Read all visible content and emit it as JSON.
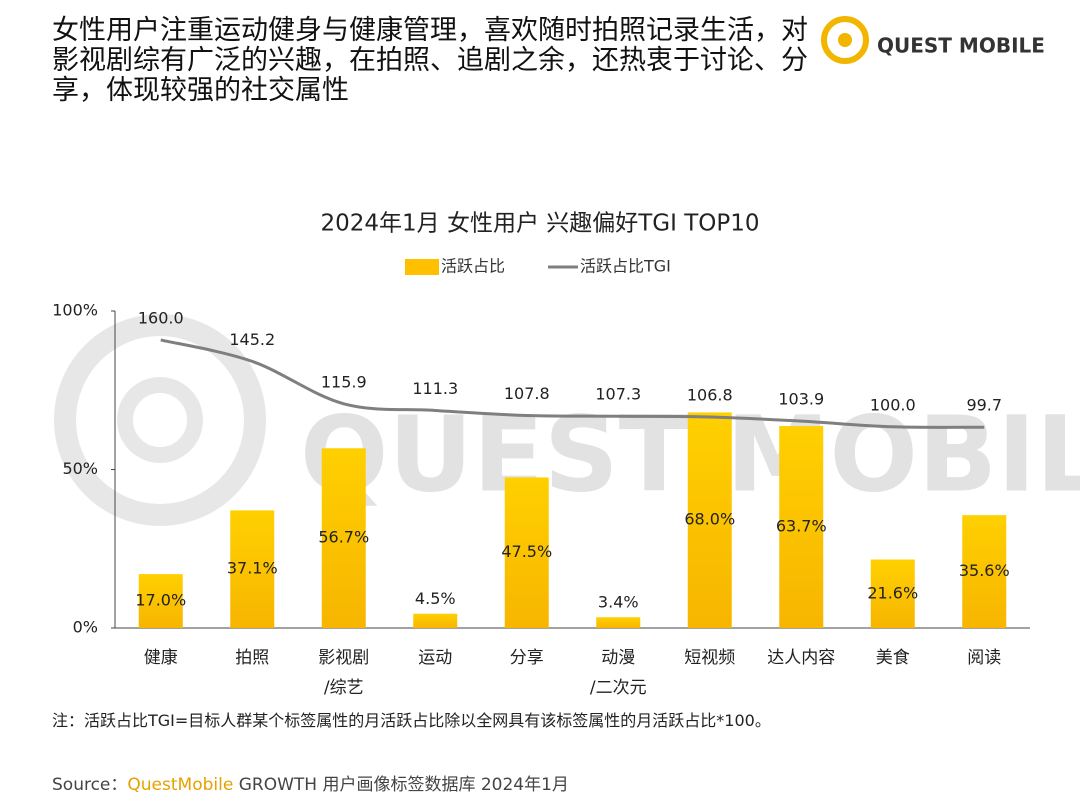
{
  "header": {
    "title": "女性用户注重运动健身与健康管理，喜欢随时拍照记录生活，对影视剧综有广泛的兴趣，在拍照、追剧之余，还热衷于讨论、分享，体现较强的社交属性",
    "logo": "QUEST MOBILE"
  },
  "watermark": "QUEST MOBILE",
  "chart_data": {
    "type": "bar",
    "title": "2024年1月 女性用户 兴趣偏好TGI TOP10",
    "categories": [
      "健康",
      "拍照",
      "影视剧\n/综艺",
      "运动",
      "分享",
      "动漫\n/二次元",
      "短视频",
      "达人内容",
      "美食",
      "阅读"
    ],
    "series": [
      {
        "name": "活跃占比",
        "color": "#FFC000",
        "values": [
          17.0,
          37.1,
          56.7,
          4.5,
          47.5,
          3.4,
          68.0,
          63.7,
          21.6,
          35.6
        ],
        "value_labels": [
          "17.0%",
          "37.1%",
          "56.7%",
          "4.5%",
          "47.5%",
          "3.4%",
          "68.0%",
          "63.7%",
          "21.6%",
          "35.6%"
        ]
      },
      {
        "name": "活跃占比TGI",
        "type": "line",
        "axis": "y2",
        "color": "#7F7F7F",
        "values": [
          160.0,
          145.2,
          115.9,
          111.3,
          107.8,
          107.3,
          106.8,
          103.9,
          100.0,
          99.7
        ],
        "value_labels": [
          "160.0",
          "145.2",
          "115.9",
          "111.3",
          "107.8",
          "107.3",
          "106.8",
          "103.9",
          "100.0",
          "99.7"
        ]
      }
    ],
    "ylim": [
      0,
      100
    ],
    "yticks": [
      {
        "value": 0,
        "label": "0%"
      },
      {
        "value": 50,
        "label": "50%"
      },
      {
        "value": 100,
        "label": "100%"
      }
    ],
    "y2lim": [
      -39,
      180
    ]
  },
  "note": "注：活跃占比TGI=目标人群某个标签属性的月活跃占比除以全网具有该标签属性的月活跃占比*100。",
  "source": {
    "label": "Source：",
    "brand": "QuestMobile",
    "text": "GROWTH 用户画像标签数据库 2024年1月"
  }
}
